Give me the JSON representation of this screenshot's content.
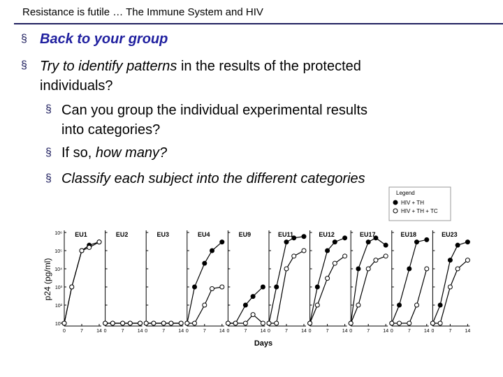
{
  "header": {
    "title": "Resistance is futile … The Immune System and HIV"
  },
  "bullets": [
    {
      "parts": [
        "Back to your group"
      ]
    },
    {
      "parts": [
        "Try to identify patterns",
        " in the results of the protected individuals?"
      ],
      "sub": [
        {
          "parts": [
            "Can you group the individual experimental results into categories?"
          ]
        },
        {
          "parts": [
            "If so, ",
            "how many?"
          ]
        },
        {
          "parts": [
            "Classify each subject into the different categories"
          ]
        }
      ]
    }
  ],
  "figure": {
    "y_label": "p24 (pg/ml)",
    "x_label": "Days",
    "log_y": true,
    "xlim": [
      0,
      14
    ],
    "xticks": [
      0,
      7,
      14
    ],
    "ylim": [
      10,
      1000000
    ],
    "yticks": [
      {
        "value": 10,
        "label": "10¹"
      },
      {
        "value": 100,
        "label": "10²"
      },
      {
        "value": 1000,
        "label": "10³"
      },
      {
        "value": 10000,
        "label": "10⁴"
      },
      {
        "value": 100000,
        "label": "10⁵"
      },
      {
        "value": 1000000,
        "label": "10⁶"
      }
    ],
    "x": [
      0,
      3,
      7,
      10,
      14
    ],
    "legend": {
      "title": "Legend",
      "series": [
        {
          "name": "HIV + TH",
          "color": "#000000"
        },
        {
          "name": "HIV + TH + TC",
          "color": "#ffffff"
        }
      ]
    },
    "panels": [
      {
        "name": "EU1",
        "series": [
          [
            10,
            1000,
            100000,
            200000,
            300000
          ],
          [
            10,
            1000,
            100000,
            150000,
            300000
          ]
        ]
      },
      {
        "name": "EU2",
        "series": [
          [
            10,
            10,
            10,
            10,
            10
          ],
          [
            10,
            10,
            10,
            10,
            10
          ]
        ]
      },
      {
        "name": "EU3",
        "series": [
          [
            10,
            10,
            10,
            10,
            10
          ],
          [
            10,
            10,
            10,
            10,
            10
          ]
        ]
      },
      {
        "name": "EU4",
        "series": [
          [
            10,
            1000,
            20000,
            100000,
            300000
          ],
          [
            10,
            10,
            100,
            800,
            1000
          ]
        ]
      },
      {
        "name": "EU9",
        "series": [
          [
            10,
            10,
            100,
            300,
            1000
          ],
          [
            10,
            10,
            10,
            30,
            10
          ]
        ]
      },
      {
        "name": "EU11",
        "series": [
          [
            10,
            1000,
            300000,
            500000,
            600000
          ],
          [
            10,
            10,
            10000,
            50000,
            100000
          ]
        ]
      },
      {
        "name": "EU12",
        "series": [
          [
            10,
            1000,
            100000,
            300000,
            500000
          ],
          [
            10,
            100,
            3000,
            20000,
            50000
          ]
        ]
      },
      {
        "name": "EU17",
        "series": [
          [
            10,
            10000,
            300000,
            500000,
            200000
          ],
          [
            10,
            100,
            10000,
            30000,
            50000
          ]
        ]
      },
      {
        "name": "EU18",
        "series": [
          [
            10,
            100,
            10000,
            300000,
            400000
          ],
          [
            10,
            10,
            10,
            100,
            10000
          ]
        ]
      },
      {
        "name": "EU23",
        "series": [
          [
            10,
            100,
            30000,
            200000,
            300000
          ],
          [
            10,
            10,
            1000,
            10000,
            30000
          ]
        ]
      }
    ]
  }
}
